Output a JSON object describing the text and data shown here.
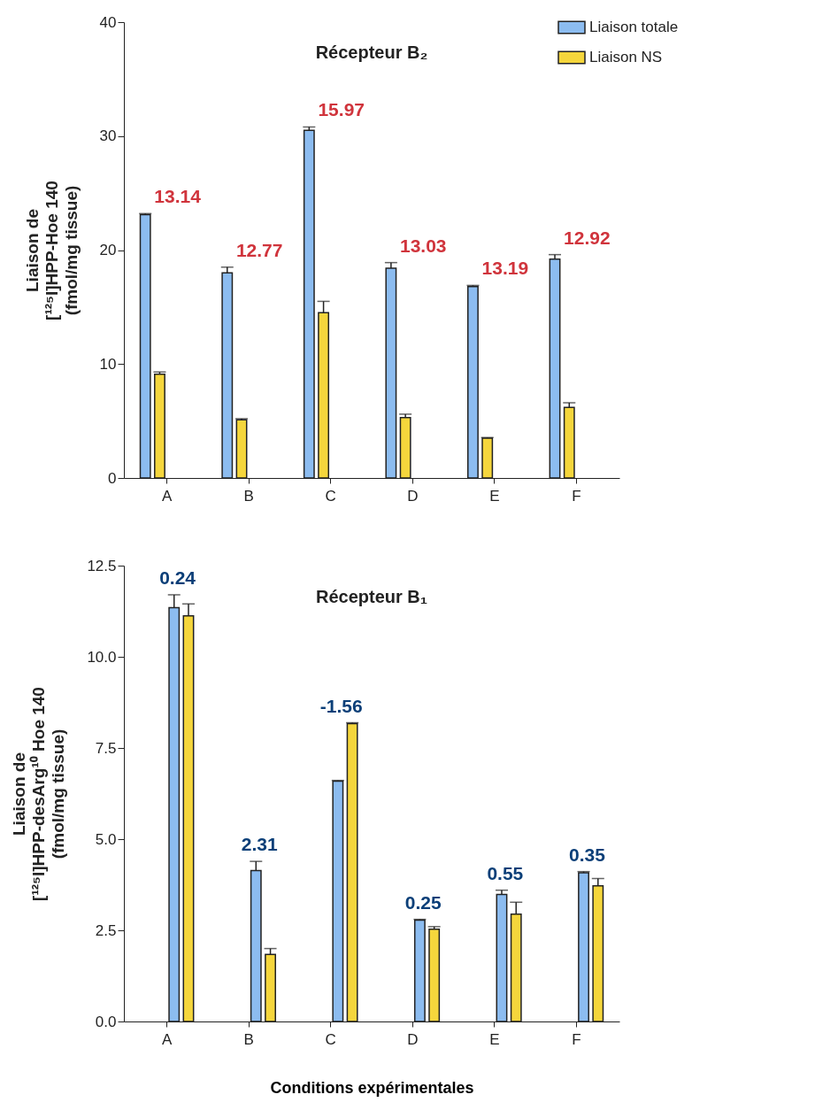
{
  "chart_data": [
    {
      "type": "bar",
      "title": "Récepteur B₂",
      "ylabel": "Liaison de\n[¹²⁵I]HPP-Hoe 140\n(fmol/mg tissue)",
      "categories": [
        "A",
        "B",
        "C",
        "D",
        "E",
        "F"
      ],
      "series": [
        {
          "name": "Liaison totale",
          "color": "#8cbcf0",
          "values": [
            23.1,
            18.0,
            30.5,
            18.4,
            16.8,
            19.2
          ],
          "errors": [
            0.1,
            0.5,
            0.3,
            0.5,
            0.1,
            0.4
          ]
        },
        {
          "name": "Liaison NS",
          "color": "#f5d63c",
          "values": [
            9.1,
            5.1,
            14.5,
            5.3,
            3.5,
            6.2
          ],
          "errors": [
            0.2,
            0.1,
            1.0,
            0.3,
            0.05,
            0.4
          ]
        }
      ],
      "ylim": [
        0,
        40
      ],
      "yticks": [
        0,
        10,
        20,
        30,
        40
      ],
      "legend": "top right",
      "annotations": [
        "13.14",
        "12.77",
        "15.97",
        "13.03",
        "13.19",
        "12.92"
      ]
    },
    {
      "type": "bar",
      "title": "Récepteur B₁",
      "ylabel": "Liaison de\n[¹²⁵I]HPP-desArg¹⁰ Hoe 140\n(fmol/mg tissue)",
      "xlabel": "Conditions expérimentales",
      "categories": [
        "A",
        "B",
        "C",
        "D",
        "E",
        "F"
      ],
      "series": [
        {
          "color": "#8cbcf0",
          "values": [
            11.35,
            4.14,
            6.59,
            2.78,
            3.48,
            4.08
          ],
          "errors": [
            0.35,
            0.25,
            0.02,
            0.02,
            0.12,
            0.03
          ]
        },
        {
          "color": "#f5d63c",
          "values": [
            11.12,
            1.84,
            8.17,
            2.53,
            2.94,
            3.72
          ],
          "errors": [
            0.33,
            0.16,
            0.02,
            0.07,
            0.33,
            0.2
          ]
        }
      ],
      "ylim": [
        0,
        12.5
      ],
      "yticks": [
        {
          "value": 0,
          "label": "0.0"
        },
        2.5,
        {
          "value": 5,
          "label": "5.0"
        },
        7.5,
        {
          "value": 10,
          "label": "10.0"
        },
        12.5
      ],
      "annotations": [
        "0.24",
        "2.31",
        "-1.56",
        "0.25",
        "0.55",
        "0.35"
      ]
    }
  ]
}
